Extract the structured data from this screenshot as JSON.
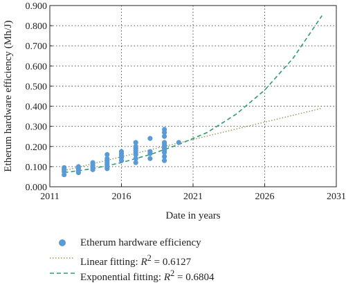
{
  "chart_data": {
    "type": "scatter",
    "xlabel": "Date in years",
    "ylabel": "Etherum hardware efficiency (Mh/J)",
    "xlim": [
      2011,
      2031
    ],
    "ylim": [
      0.0,
      0.9
    ],
    "x_ticks": [
      2011,
      2016,
      2021,
      2026,
      2031
    ],
    "y_ticks": [
      "0.000",
      "0.100",
      "0.200",
      "0.300",
      "0.400",
      "0.500",
      "0.600",
      "0.700",
      "0.800",
      "0.900"
    ],
    "grid": true,
    "legend_position": "bottom",
    "colors": {
      "points": "#5b9bd5",
      "linear": "#9a9a55",
      "exponential": "#2e9a6e"
    },
    "series": [
      {
        "name": "Etherum hardware efficiency",
        "kind": "points",
        "points": [
          [
            2012,
            0.06
          ],
          [
            2012,
            0.075
          ],
          [
            2012,
            0.085
          ],
          [
            2012,
            0.095
          ],
          [
            2013,
            0.07
          ],
          [
            2013,
            0.08
          ],
          [
            2013,
            0.09
          ],
          [
            2013,
            0.1
          ],
          [
            2014,
            0.085
          ],
          [
            2014,
            0.095
          ],
          [
            2014,
            0.105
          ],
          [
            2014,
            0.115
          ],
          [
            2014,
            0.12
          ],
          [
            2015,
            0.09
          ],
          [
            2015,
            0.1
          ],
          [
            2015,
            0.11
          ],
          [
            2015,
            0.12
          ],
          [
            2015,
            0.13
          ],
          [
            2015,
            0.14
          ],
          [
            2015,
            0.16
          ],
          [
            2016,
            0.13
          ],
          [
            2016,
            0.145
          ],
          [
            2016,
            0.155
          ],
          [
            2016,
            0.165
          ],
          [
            2016,
            0.175
          ],
          [
            2017,
            0.12
          ],
          [
            2017,
            0.14
          ],
          [
            2017,
            0.16
          ],
          [
            2017,
            0.17
          ],
          [
            2017,
            0.18
          ],
          [
            2017,
            0.19
          ],
          [
            2017,
            0.2
          ],
          [
            2017,
            0.22
          ],
          [
            2018,
            0.14
          ],
          [
            2018,
            0.165
          ],
          [
            2018,
            0.175
          ],
          [
            2018,
            0.24
          ],
          [
            2019,
            0.13
          ],
          [
            2019,
            0.15
          ],
          [
            2019,
            0.17
          ],
          [
            2019,
            0.18
          ],
          [
            2019,
            0.19
          ],
          [
            2019,
            0.2
          ],
          [
            2019,
            0.21
          ],
          [
            2019,
            0.22
          ],
          [
            2019,
            0.25
          ],
          [
            2019,
            0.27
          ],
          [
            2019,
            0.285
          ],
          [
            2020,
            0.22
          ]
        ]
      },
      {
        "name": "Linear fitting: R² = 0.6127",
        "kind": "line",
        "style": "dotted",
        "points": [
          [
            2012,
            0.08
          ],
          [
            2030,
            0.39
          ]
        ]
      },
      {
        "name": "Exponential fitting: R² = 0.6804",
        "kind": "line",
        "style": "dashed",
        "points": [
          [
            2012,
            0.07
          ],
          [
            2014,
            0.09
          ],
          [
            2016,
            0.12
          ],
          [
            2018,
            0.16
          ],
          [
            2020,
            0.21
          ],
          [
            2022,
            0.27
          ],
          [
            2024,
            0.36
          ],
          [
            2026,
            0.48
          ],
          [
            2028,
            0.64
          ],
          [
            2030,
            0.85
          ]
        ]
      }
    ]
  },
  "legend": {
    "items": [
      {
        "label": "Etherum hardware efficiency"
      },
      {
        "label_prefix": "Linear fitting: ",
        "label_var": "R",
        "label_sup": "2",
        "label_suffix": " = 0.6127"
      },
      {
        "label_prefix": "Exponential fitting: ",
        "label_var": "R",
        "label_sup": "2",
        "label_suffix": " = 0.6804"
      }
    ]
  }
}
